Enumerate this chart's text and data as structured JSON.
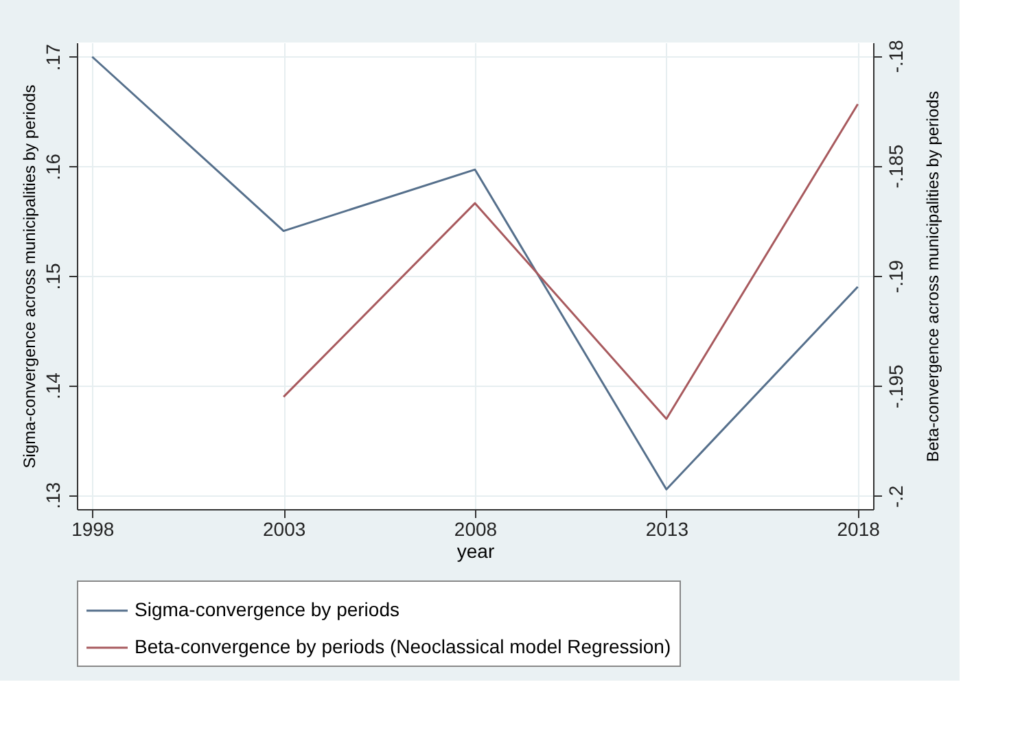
{
  "chart_data": {
    "type": "line",
    "xlabel": "year",
    "ylabel": "Sigma-convergence across municipalities by periods",
    "y2label": "Beta-convergence across municipalities by periods",
    "x": [
      1998,
      2003,
      2008,
      2013,
      2018
    ],
    "series": [
      {
        "name": "Sigma-convergence by periods",
        "color": "#56708c",
        "values": [
          0.17,
          0.1541,
          0.1597,
          0.1305,
          0.149
        ]
      },
      {
        "name": "Beta-convergence by periods (Neoclassical model Regression)",
        "color": "#a85a5e",
        "axis": "y2",
        "values": [
          null,
          -0.1955,
          -0.1867,
          -0.1965,
          -0.1822
        ]
      }
    ],
    "xlim": [
      1997.6,
      2018.4
    ],
    "xticks": [
      1998,
      2003,
      2008,
      2013,
      2018
    ],
    "ylim": [
      0.1287,
      0.1713
    ],
    "yticks": [
      {
        "value": 0.13,
        "label": ".13"
      },
      {
        "value": 0.14,
        "label": ".14"
      },
      {
        "value": 0.15,
        "label": ".15"
      },
      {
        "value": 0.16,
        "label": ".16"
      },
      {
        "value": 0.17,
        "label": ".17"
      }
    ],
    "y2lim": [
      -0.2006,
      -0.1794
    ],
    "y2ticks": [
      {
        "value": -0.2,
        "label": "-.2"
      },
      {
        "value": -0.195,
        "label": "-.195"
      },
      {
        "value": -0.19,
        "label": "-.19"
      },
      {
        "value": -0.185,
        "label": "-.185"
      },
      {
        "value": -0.18,
        "label": "-.18"
      }
    ],
    "grid": true,
    "legend": "bottom",
    "line_style": "solid",
    "marker": "none"
  }
}
